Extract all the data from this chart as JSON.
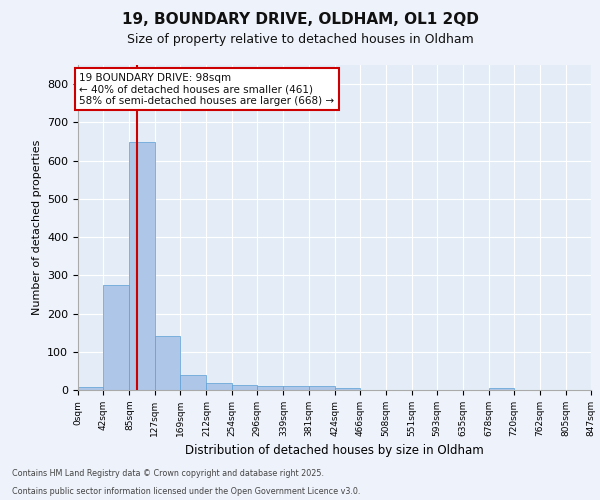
{
  "title_line1": "19, BOUNDARY DRIVE, OLDHAM, OL1 2QD",
  "title_line2": "Size of property relative to detached houses in Oldham",
  "xlabel": "Distribution of detached houses by size in Oldham",
  "ylabel": "Number of detached properties",
  "footer_line1": "Contains HM Land Registry data © Crown copyright and database right 2025.",
  "footer_line2": "Contains public sector information licensed under the Open Government Licence v3.0.",
  "annotation_line1": "19 BOUNDARY DRIVE: 98sqm",
  "annotation_line2": "← 40% of detached houses are smaller (461)",
  "annotation_line3": "58% of semi-detached houses are larger (668) →",
  "property_size_sqm": 98,
  "bar_edges": [
    0,
    42,
    85,
    127,
    169,
    212,
    254,
    296,
    339,
    381,
    424,
    466,
    508,
    551,
    593,
    635,
    678,
    720,
    762,
    805,
    847
  ],
  "bar_values": [
    7,
    275,
    648,
    142,
    38,
    18,
    13,
    11,
    11,
    10,
    4,
    0,
    0,
    0,
    0,
    0,
    5,
    0,
    0,
    0
  ],
  "bar_color": "#aec6e8",
  "bar_edge_color": "#5a9fd4",
  "vline_color": "#cc0000",
  "vline_x": 98,
  "annotation_box_color": "#cc0000",
  "annotation_fill_color": "#ffffff",
  "background_color": "#eef2fa",
  "plot_bg_color": "#e4ecf7",
  "grid_color": "#ffffff",
  "ylim": [
    0,
    850
  ],
  "yticks": [
    0,
    100,
    200,
    300,
    400,
    500,
    600,
    700,
    800
  ],
  "tick_labels": [
    "0sqm",
    "42sqm",
    "85sqm",
    "127sqm",
    "169sqm",
    "212sqm",
    "254sqm",
    "296sqm",
    "339sqm",
    "381sqm",
    "424sqm",
    "466sqm",
    "508sqm",
    "551sqm",
    "593sqm",
    "635sqm",
    "678sqm",
    "720sqm",
    "762sqm",
    "805sqm",
    "847sqm"
  ]
}
